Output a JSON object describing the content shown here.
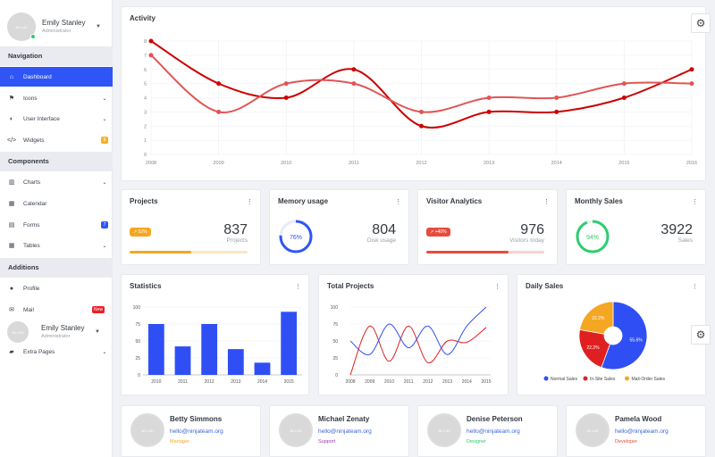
{
  "sidebar": {
    "profile": {
      "avatar": "80 x 80",
      "name": "Emily Stanley",
      "role": "Administrator"
    },
    "profile2": {
      "avatar": "80 x 80",
      "name": "Emily Stanley",
      "role": "Administrator"
    },
    "sections": {
      "navigation": "Navigation",
      "components": "Components",
      "additions": "Additions"
    },
    "items": {
      "dashboard": {
        "label": "Dashboard",
        "icon": "home-icon"
      },
      "icons": {
        "label": "Icons",
        "icon": "flag-icon"
      },
      "ui": {
        "label": "User Interface",
        "icon": "half-circle-icon"
      },
      "widgets": {
        "label": "Widgets",
        "icon": "code-icon",
        "badge": "6",
        "badge_color": "#f5b225"
      },
      "charts": {
        "label": "Charts",
        "icon": "bar-chart-icon"
      },
      "calendar": {
        "label": "Calendar",
        "icon": "calendar-icon"
      },
      "forms": {
        "label": "Forms",
        "icon": "forms-icon",
        "badge": "7",
        "badge_color": "#2f55f7"
      },
      "tables": {
        "label": "Tables",
        "icon": "table-icon"
      },
      "profile": {
        "label": "Profile",
        "icon": "user-icon"
      },
      "mail": {
        "label": "Mail",
        "icon": "mail-icon",
        "badge": "New",
        "badge_color": "#ea2027"
      },
      "extra": {
        "label": "Extra Pages",
        "icon": "folder-icon"
      }
    }
  },
  "activity": {
    "title": "Activity"
  },
  "stats_cards": {
    "projects": {
      "title": "Projects",
      "value": "837",
      "sub": "Projects",
      "pill": "52%",
      "pill_color": "#f5a623",
      "progress": 0.52,
      "bar_color": "#f5a623",
      "track_color": "#fde6c2"
    },
    "memory": {
      "title": "Memory usage",
      "value": "804",
      "sub": "Disk usage",
      "ring": "76%",
      "progress": 0.76,
      "ring_color": "#2f55f7"
    },
    "visitor": {
      "title": "Visitor Analytics",
      "value": "976",
      "sub": "Visitors today",
      "pill": "+40%",
      "pill_color": "#e74c3c",
      "progress": 0.7,
      "bar_color": "#e74c3c",
      "track_color": "#fbd3cf"
    },
    "sales": {
      "title": "Monthly Sales",
      "value": "3922",
      "sub": "Sales",
      "ring": "94%",
      "progress": 0.94,
      "ring_color": "#2ecc71"
    }
  },
  "statistics": {
    "title": "Statistics"
  },
  "total_projects": {
    "title": "Total Projects"
  },
  "daily_sales": {
    "title": "Daily Sales"
  },
  "people": [
    {
      "avatar": "80 x 80",
      "name": "Betty Simmons",
      "email": "hello@ninjateam.org",
      "role": "Manager",
      "role_color": "#f5a623"
    },
    {
      "avatar": "80 x 80",
      "name": "Michael Zenaty",
      "email": "hello@ninjateam.org",
      "role": "Support",
      "role_color": "#8e44ad"
    },
    {
      "avatar": "80 x 80",
      "name": "Denise Peterson",
      "email": "hello@ninjateam.org",
      "role": "Designer",
      "role_color": "#2ecc71"
    },
    {
      "avatar": "80 x 80",
      "name": "Pamela Wood",
      "email": "hello@ninjateam.org",
      "role": "Developer",
      "role_color": "#e74c3c"
    }
  ],
  "chart_data": [
    {
      "type": "line",
      "x": [
        "2008",
        "2009",
        "2010",
        "2011",
        "2012",
        "2013",
        "2014",
        "2015",
        "2016"
      ],
      "ylim": [
        0,
        8
      ],
      "yticks": [
        "0",
        "1",
        "2",
        "3",
        "4",
        "5",
        "6",
        "7",
        "8"
      ],
      "series": [
        {
          "values": [
            8,
            5,
            4,
            6,
            2,
            3,
            3,
            4,
            6
          ],
          "color": "#cc0000"
        },
        {
          "values": [
            7,
            3,
            5,
            5,
            3,
            4,
            4,
            5,
            5
          ],
          "color": "#e05555"
        }
      ]
    },
    {
      "type": "bar",
      "categories": [
        "2010",
        "2011",
        "2012",
        "2013",
        "2014",
        "2015"
      ],
      "values": [
        75,
        42,
        75,
        38,
        18,
        93
      ],
      "ylim": [
        0,
        100
      ],
      "yticks": [
        "0",
        "25",
        "50",
        "75",
        "100"
      ],
      "color": "#2f4ff5"
    },
    {
      "type": "line",
      "x": [
        "2008",
        "2009",
        "2010",
        "2011",
        "2012",
        "2013",
        "2014",
        "2015"
      ],
      "ylim": [
        0,
        100
      ],
      "yticks": [
        "0",
        "25",
        "50",
        "75",
        "100"
      ],
      "series": [
        {
          "values": [
            0,
            72,
            20,
            72,
            18,
            50,
            48,
            70
          ],
          "color": "#e02020"
        },
        {
          "values": [
            50,
            30,
            75,
            40,
            72,
            30,
            72,
            100
          ],
          "color": "#2f4ff5"
        }
      ]
    },
    {
      "type": "pie",
      "series": [
        {
          "name": "Normal Sales",
          "value": 55.6,
          "label": "55.6%",
          "color": "#2f4ff5"
        },
        {
          "name": "In-Site Sales",
          "value": 22.2,
          "label": "22.2%",
          "color": "#e02020"
        },
        {
          "name": "Mail-Order Sales",
          "value": 22.2,
          "label": "22.2%",
          "color": "#f5a623"
        }
      ]
    }
  ]
}
